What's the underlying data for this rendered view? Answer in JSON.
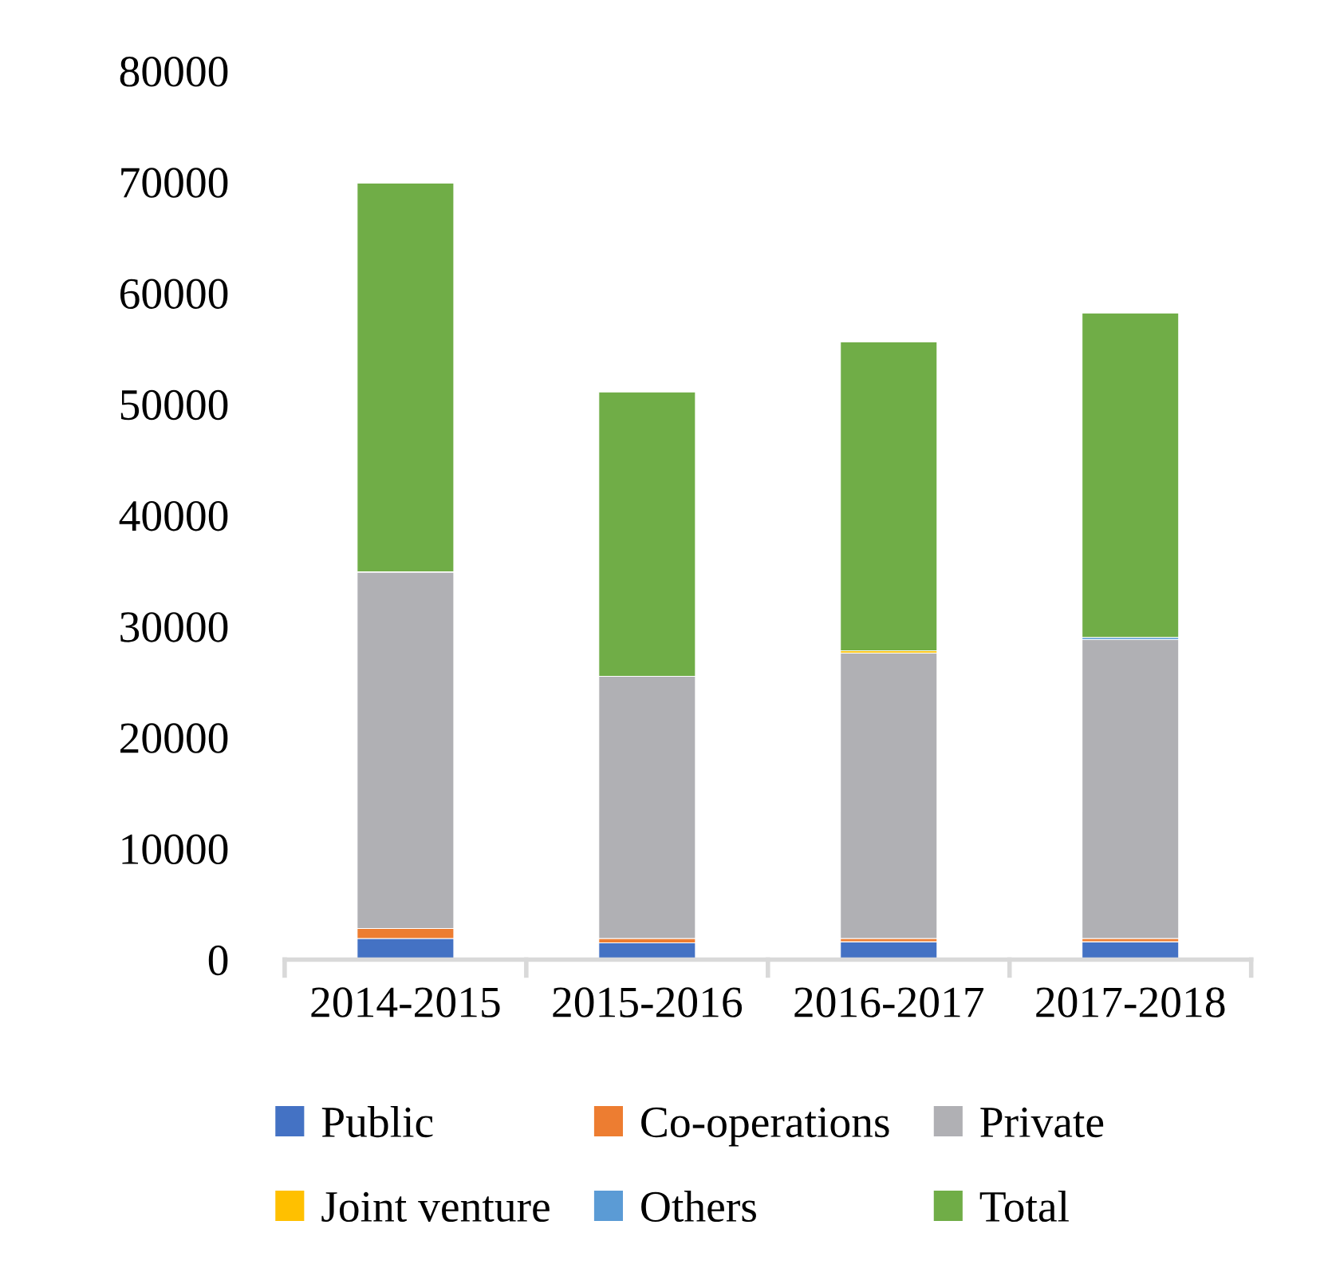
{
  "chart_data": {
    "type": "bar",
    "stacked": true,
    "categories": [
      "2014-2015",
      "2015-2016",
      "2016-2017",
      "2017-2018"
    ],
    "series": [
      {
        "name": "Public",
        "color": "#4472c4",
        "values": [
          1900,
          1500,
          1600,
          1600
        ]
      },
      {
        "name": "Co-operations",
        "color": "#ed7d31",
        "values": [
          900,
          400,
          300,
          300
        ]
      },
      {
        "name": "Private",
        "color": "#b0b0b4",
        "values": [
          32100,
          23600,
          25700,
          26900
        ]
      },
      {
        "name": "Joint venture",
        "color": "#ffc000",
        "values": [
          null,
          null,
          200,
          null
        ]
      },
      {
        "name": "Others",
        "color": "#5b9bd5",
        "values": [
          null,
          null,
          null,
          200
        ]
      },
      {
        "name": "Total",
        "color": "#70ad47",
        "values": [
          35000,
          25600,
          27800,
          29200
        ]
      }
    ],
    "ylim": [
      0,
      80000
    ],
    "yticks": [
      0,
      10000,
      20000,
      30000,
      40000,
      50000,
      60000,
      70000,
      80000
    ],
    "grid": false,
    "legend": "bottom"
  }
}
